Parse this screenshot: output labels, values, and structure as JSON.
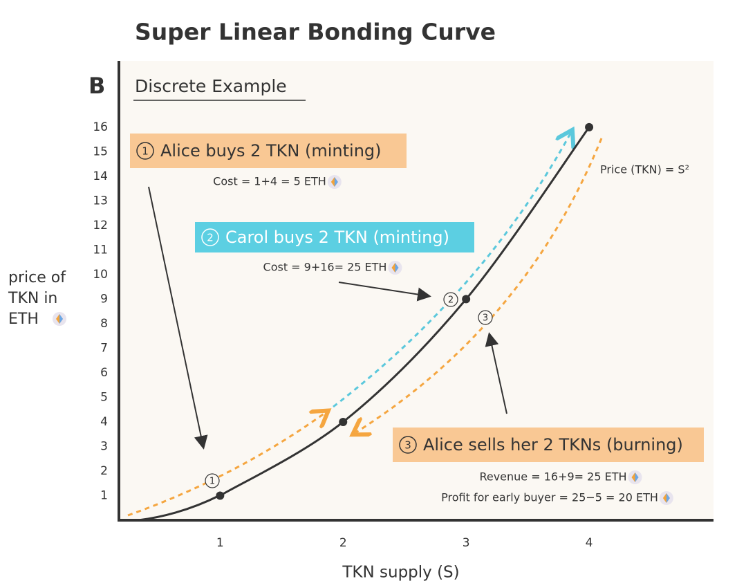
{
  "chart_data": {
    "type": "line",
    "title": "Super Linear Bonding Curve",
    "panel_label": "B",
    "subtitle": "Discrete Example",
    "x_label": "TKN supply (S)",
    "y_label": [
      "price of",
      "TKN in",
      "ETH"
    ],
    "x": [
      1,
      2,
      3,
      4
    ],
    "series": [
      {
        "name": "Price (TKN) = S²",
        "color": "#333333",
        "values": [
          1,
          4,
          9,
          16
        ]
      }
    ],
    "xlim": [
      0.2,
      5
    ],
    "ylim": [
      0,
      18.7
    ],
    "xticks": [
      1,
      2,
      3,
      4
    ],
    "yticks": [
      1,
      2,
      3,
      4,
      5,
      6,
      7,
      8,
      9,
      10,
      11,
      12,
      13,
      14,
      15,
      16
    ],
    "annotations": [
      {
        "step": "1",
        "text": "Alice buys 2 TKN (minting)",
        "details": [
          "Cost = 1+4 = 5 ETH"
        ],
        "color": "#f9c894"
      },
      {
        "step": "2",
        "text": "Carol buys 2 TKN (minting)",
        "details": [
          "Cost = 9+16= 25 ETH"
        ],
        "color": "#5ccfe2"
      },
      {
        "step": "3",
        "text": "Alice sells her 2 TKNs (burning)",
        "details": [
          "Revenue = 16+9= 25 ETH",
          "Profit for early buyer = 25−5 = 20 ETH"
        ],
        "color": "#f9c894"
      }
    ]
  }
}
